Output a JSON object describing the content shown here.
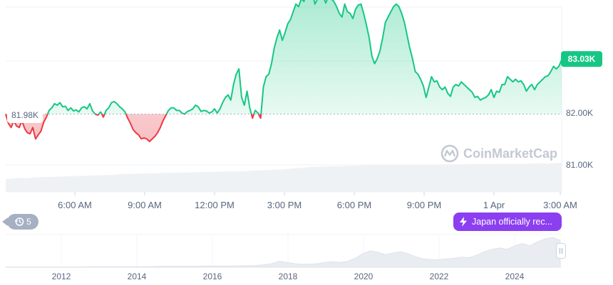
{
  "chart_data": {
    "type": "line",
    "last_price_label": "83.03K",
    "reference_label": "81.98K",
    "reference_value": 81.98,
    "y_ticks": [
      {
        "label": "83.00K",
        "value": 83.0
      },
      {
        "label": "82.00K",
        "value": 82.0
      },
      {
        "label": "81.00K",
        "value": 81.0
      }
    ],
    "x_ticks": [
      "6:00 AM",
      "9:00 AM",
      "12:00 PM",
      "3:00 PM",
      "6:00 PM",
      "9:00 PM",
      "1 Apr",
      "3:00 AM"
    ],
    "navigator_ticks": [
      "2012",
      "2014",
      "2016",
      "2018",
      "2020",
      "2022",
      "2024"
    ],
    "above_color": "#16c784",
    "below_color": "#ea3943",
    "series": [
      {
        "values": [
          81.98,
          81.8,
          81.72,
          81.85,
          81.75,
          81.72,
          81.85,
          81.7,
          81.62,
          81.6,
          81.72,
          81.5,
          81.58,
          81.65,
          81.82,
          81.92,
          82.05,
          82.1,
          82.18,
          82.15,
          82.2,
          82.12,
          82.13,
          82.05,
          82.1,
          82.04,
          82.06,
          82.02,
          82.1,
          82.12,
          82.08,
          82.18,
          82.04,
          81.98,
          81.96,
          82.02,
          81.92,
          82.05,
          82.1,
          82.2,
          82.22,
          82.18,
          82.12,
          82.08,
          82.02,
          81.9,
          81.8,
          81.68,
          81.62,
          81.58,
          81.5,
          81.52,
          81.5,
          81.45,
          81.5,
          81.55,
          81.62,
          81.72,
          81.85,
          81.95,
          82.05,
          82.1,
          82.1,
          82.05,
          82.05,
          82.0,
          81.98,
          82.03,
          82.05,
          82.08,
          82.15,
          82.12,
          82.03,
          82.05,
          82.04,
          82.0,
          82.02,
          82.08,
          82.0,
          82.08,
          82.2,
          82.3,
          82.35,
          82.25,
          82.55,
          82.75,
          82.85,
          82.3,
          82.15,
          82.42,
          82.1,
          81.9,
          82.05,
          82.0,
          81.9,
          82.5,
          82.7,
          82.75,
          82.95,
          83.25,
          83.45,
          83.6,
          83.4,
          83.55,
          83.72,
          83.8,
          83.95,
          84.1,
          84.05,
          84.2,
          84.15,
          84.45,
          84.3,
          84.35,
          84.1,
          84.2,
          84.32,
          84.25,
          84.12,
          84.25,
          84.2,
          84.15,
          84.05,
          83.92,
          83.85,
          84.1,
          83.95,
          83.92,
          83.82,
          84.0,
          84.08,
          84.1,
          83.92,
          83.7,
          83.45,
          83.1,
          82.95,
          83.05,
          83.2,
          83.45,
          83.75,
          83.85,
          83.95,
          84.05,
          84.1,
          84.05,
          83.92,
          83.75,
          83.5,
          83.25,
          83.05,
          82.8,
          82.75,
          82.65,
          82.52,
          82.3,
          82.5,
          82.7,
          82.6,
          82.62,
          82.5,
          82.45,
          82.5,
          82.38,
          82.32,
          82.5,
          82.55,
          82.52,
          82.6,
          82.55,
          82.5,
          82.45,
          82.4,
          82.3,
          82.32,
          82.25,
          82.28,
          82.3,
          82.35,
          82.45,
          82.3,
          82.42,
          82.4,
          82.55,
          82.55,
          82.7,
          82.65,
          82.6,
          82.65,
          82.6,
          82.62,
          82.55,
          82.42,
          82.5,
          82.55,
          82.45,
          82.55,
          82.6,
          82.65,
          82.7,
          82.72,
          82.8,
          82.9,
          82.85,
          82.9,
          83.03
        ]
      }
    ],
    "volume": [
      0.4,
      0.42,
      0.44,
      0.43,
      0.45,
      0.46,
      0.47,
      0.47,
      0.48,
      0.49,
      0.5,
      0.5,
      0.51,
      0.52,
      0.53,
      0.53,
      0.55,
      0.56,
      0.56,
      0.57,
      0.58,
      0.58,
      0.59,
      0.6,
      0.6,
      0.61,
      0.61,
      0.62,
      0.62,
      0.63,
      0.63,
      0.64,
      0.64,
      0.64,
      0.65,
      0.66,
      0.67,
      0.68,
      0.69,
      0.7,
      0.72,
      0.74,
      0.75,
      0.77,
      0.78,
      0.79,
      0.8,
      0.8,
      0.81,
      0.81,
      0.82,
      0.83,
      0.84,
      0.84,
      0.84,
      0.84,
      0.85,
      0.85,
      0.85,
      0.85,
      0.85,
      0.85,
      0.86,
      0.86,
      0.86,
      0.86,
      0.87,
      0.87,
      0.87,
      0.87,
      0.88,
      0.88,
      0.88,
      0.88,
      0.88,
      0.89,
      0.89,
      0.89,
      0.9,
      0.9
    ]
  },
  "overview": {
    "history": [
      0.01,
      0.01,
      0.01,
      0.01,
      0.01,
      0.01,
      0.01,
      0.01,
      0.01,
      0.01,
      0.01,
      0.02,
      0.02,
      0.02,
      0.02,
      0.02,
      0.02,
      0.02,
      0.02,
      0.02,
      0.03,
      0.03,
      0.03,
      0.03,
      0.03,
      0.03,
      0.04,
      0.04,
      0.04,
      0.04,
      0.04,
      0.05,
      0.05,
      0.06,
      0.08,
      0.12,
      0.2,
      0.16,
      0.12,
      0.1,
      0.1,
      0.12,
      0.16,
      0.18,
      0.16,
      0.2,
      0.3,
      0.45,
      0.55,
      0.5,
      0.42,
      0.48,
      0.52,
      0.45,
      0.35,
      0.28,
      0.26,
      0.25,
      0.28,
      0.3,
      0.34,
      0.32,
      0.4,
      0.52,
      0.6,
      0.65,
      0.6,
      0.72,
      0.8,
      0.72,
      0.85,
      0.95,
      1.0,
      0.9
    ]
  },
  "ui": {
    "history_count": "5",
    "news_text": "Japan officially rec...",
    "watermark": "CoinMarketCap"
  },
  "colors": {
    "line_up": "#16c784",
    "line_down": "#ea3943",
    "news": "#8c3ff0",
    "accent_text": "#58667e"
  }
}
